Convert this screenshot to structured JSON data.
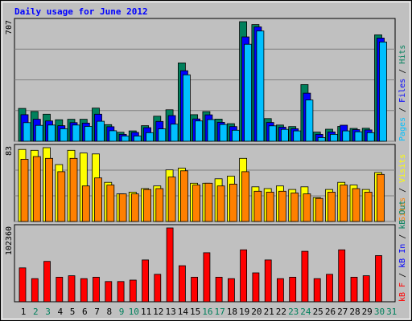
{
  "chart_data": {
    "type": "bar",
    "title": "Daily usage for June 2012",
    "days": [
      "1",
      "2",
      "3",
      "4",
      "5",
      "6",
      "7",
      "8",
      "9",
      "10",
      "11",
      "12",
      "13",
      "14",
      "15",
      "16",
      "17",
      "18",
      "19",
      "20",
      "21",
      "22",
      "23",
      "24",
      "25",
      "26",
      "27",
      "28",
      "29",
      "30",
      "31"
    ],
    "weekend_days": [
      "2",
      "3",
      "9",
      "10",
      "16",
      "17",
      "23",
      "24",
      "30",
      "31"
    ],
    "panels": {
      "hits_files_pages": {
        "max_label": "707",
        "legend": {
          "pages": "Pages",
          "files": "Files",
          "hits": "Hits"
        },
        "series": [
          {
            "name": "Hits",
            "key": "hits",
            "values": [
              194,
              176,
              160,
              127,
              130,
              130,
              196,
              98,
              53,
              61,
              92,
              148,
              186,
              463,
              157,
              175,
              131,
              104,
              707,
              690,
              134,
              96,
              87,
              335,
              54,
              71,
              88,
              76,
              77,
              629,
              0
            ]
          },
          {
            "name": "Files",
            "key": "files",
            "values": [
              157,
              130,
              120,
              92,
              110,
              107,
              160,
              86,
              41,
              52,
              80,
              117,
              152,
              417,
              132,
              156,
              112,
              87,
              617,
              676,
              111,
              83,
              74,
              284,
              41,
              55,
              95,
              69,
              67,
              610,
              0
            ]
          },
          {
            "name": "Pages",
            "key": "pages",
            "values": [
              110,
              94,
              96,
              74,
              96,
              88,
              118,
              62,
              31,
              31,
              51,
              73,
              101,
              393,
              120,
              128,
              99,
              65,
              573,
              652,
              91,
              70,
              61,
              244,
              22,
              41,
              61,
              56,
              51,
              587,
              0
            ]
          }
        ]
      },
      "visits_sites": {
        "max_label": "83",
        "legend": {
          "sites": "Sites",
          "visits": "Visits"
        },
        "series": [
          {
            "name": "Visits",
            "key": "visits",
            "values": [
              81,
              80,
              83,
              64,
              80,
              77,
              76,
              44,
              31,
              33,
              37,
              40,
              58,
              60,
              43,
              43,
              48,
              51,
              71,
              39,
              37,
              40,
              36,
              39,
              27,
              36,
              44,
              41,
              36,
              55,
              0
            ]
          },
          {
            "name": "Sites",
            "key": "sites",
            "values": [
              70,
              73,
              71,
              56,
              71,
              40,
              49,
              41,
              31,
              31,
              36,
              37,
              50,
              57,
              41,
              43,
              40,
              42,
              56,
              34,
              33,
              34,
              32,
              31,
              26,
              33,
              41,
              37,
              33,
              53,
              0
            ]
          }
        ]
      },
      "kbytes": {
        "max_label": "102360",
        "legend": {
          "kb_f": "kB F",
          "kb_in": "kB In",
          "kb_out": "kB Out"
        },
        "series": [
          {
            "name": "kB F",
            "key": "kbf",
            "values": [
              47000,
              32000,
              56000,
              34000,
              36000,
              32000,
              34000,
              28000,
              28000,
              30000,
              58000,
              38000,
              102360,
              50000,
              34000,
              68000,
              34000,
              32000,
              72000,
              40000,
              58000,
              32000,
              34000,
              70000,
              32000,
              38000,
              72000,
              34000,
              36000,
              64000,
              0
            ]
          }
        ]
      }
    },
    "colors": {
      "hits": "#00805c",
      "files": "#0000ff",
      "pages": "#00c0ff",
      "visits": "#ffff00",
      "sites": "#ff8000",
      "kbf": "#ff0000",
      "kbin": "#0000ff",
      "kbout": "#00805c",
      "title": "#0000ff",
      "weekend": "#00805c",
      "weekday": "#000000",
      "background": "#c0c0c0",
      "border": "#808080",
      "grid": "#808080"
    }
  }
}
